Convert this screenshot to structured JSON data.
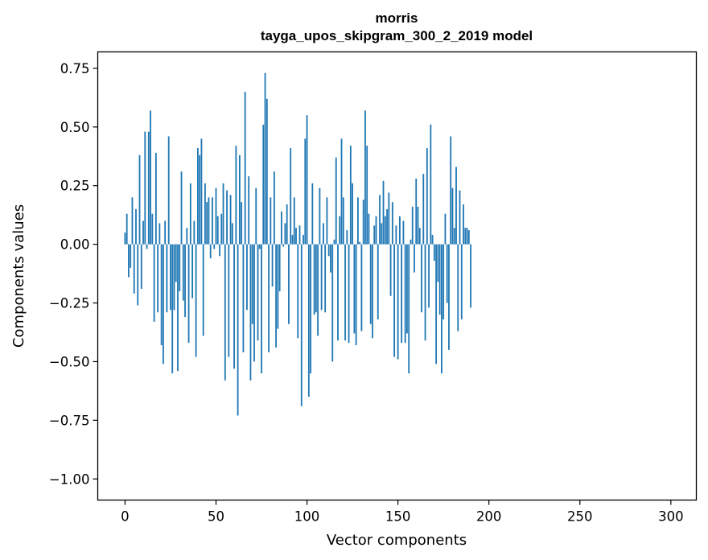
{
  "chart_data": {
    "type": "bar",
    "title": "morris",
    "subtitle": "tayga_upos_skipgram_300_2_2019 model",
    "xlabel": "Vector components",
    "ylabel": "Components values",
    "xlim": [
      -15,
      314
    ],
    "ylim": [
      -1.09,
      0.82
    ],
    "xticks": [
      0,
      50,
      100,
      150,
      200,
      250,
      300
    ],
    "yticks": [
      -1.0,
      -0.75,
      -0.5,
      -0.25,
      0.0,
      0.25,
      0.5,
      0.75
    ],
    "ytick_labels": [
      "−1.00",
      "−0.75",
      "−0.50",
      "−0.25",
      "0.00",
      "0.25",
      "0.50",
      "0.75"
    ],
    "bar_color": "#1f77b4",
    "values": [
      0.05,
      0.13,
      -0.14,
      -0.1,
      0.2,
      -0.21,
      0.15,
      -0.26,
      0.38,
      -0.19,
      0.1,
      0.48,
      -0.02,
      0.48,
      0.57,
      0.13,
      -0.33,
      0.39,
      -0.29,
      0.09,
      -0.43,
      -0.51,
      0.1,
      -0.29,
      0.46,
      -0.28,
      -0.55,
      -0.28,
      -0.16,
      -0.54,
      -0.2,
      0.31,
      -0.24,
      -0.31,
      0.07,
      -0.42,
      0.26,
      -0.23,
      0.1,
      -0.48,
      0.41,
      0.38,
      0.45,
      -0.39,
      0.26,
      0.18,
      0.2,
      -0.06,
      0.2,
      -0.02,
      0.24,
      0.12,
      -0.05,
      0.13,
      0.26,
      -0.58,
      0.23,
      -0.48,
      0.21,
      0.09,
      -0.53,
      0.42,
      -0.73,
      0.38,
      0.18,
      -0.46,
      0.65,
      -0.28,
      0.29,
      -0.58,
      -0.34,
      -0.5,
      0.24,
      -0.41,
      -0.02,
      -0.55,
      0.51,
      0.73,
      0.62,
      -0.46,
      0.2,
      -0.18,
      0.31,
      -0.44,
      -0.36,
      -0.2,
      0.14,
      -0.01,
      0.09,
      0.17,
      -0.34,
      0.41,
      0.04,
      0.2,
      0.07,
      -0.4,
      0.08,
      -0.69,
      0.04,
      0.45,
      0.55,
      -0.65,
      -0.55,
      0.26,
      -0.3,
      -0.29,
      -0.39,
      0.24,
      -0.28,
      0.09,
      -0.29,
      0.2,
      -0.05,
      -0.12,
      -0.5,
      0.02,
      0.37,
      -0.41,
      0.12,
      0.45,
      0.2,
      -0.41,
      0.06,
      -0.42,
      0.42,
      0.26,
      -0.38,
      -0.43,
      0.2,
      0.01,
      -0.37,
      0.19,
      0.57,
      0.42,
      0.13,
      -0.34,
      -0.4,
      0.08,
      0.12,
      -0.32,
      0.21,
      0.09,
      0.27,
      0.12,
      0.15,
      0.22,
      -0.22,
      0.18,
      -0.48,
      0.08,
      -0.49,
      0.12,
      -0.42,
      0.1,
      -0.42,
      -0.38,
      -0.55,
      0.02,
      0.16,
      -0.12,
      0.28,
      0.16,
      0.07,
      -0.29,
      0.3,
      -0.41,
      0.41,
      -0.27,
      0.51,
      0.04,
      -0.07,
      -0.51,
      -0.16,
      -0.3,
      -0.55,
      -0.32,
      0.13,
      -0.25,
      -0.45,
      0.46,
      0.24,
      0.07,
      0.33,
      -0.37,
      0.23,
      -0.32,
      0.17,
      0.07,
      0.07,
      0.06,
      -0.27
    ],
    "grid": false,
    "legend": "none"
  }
}
